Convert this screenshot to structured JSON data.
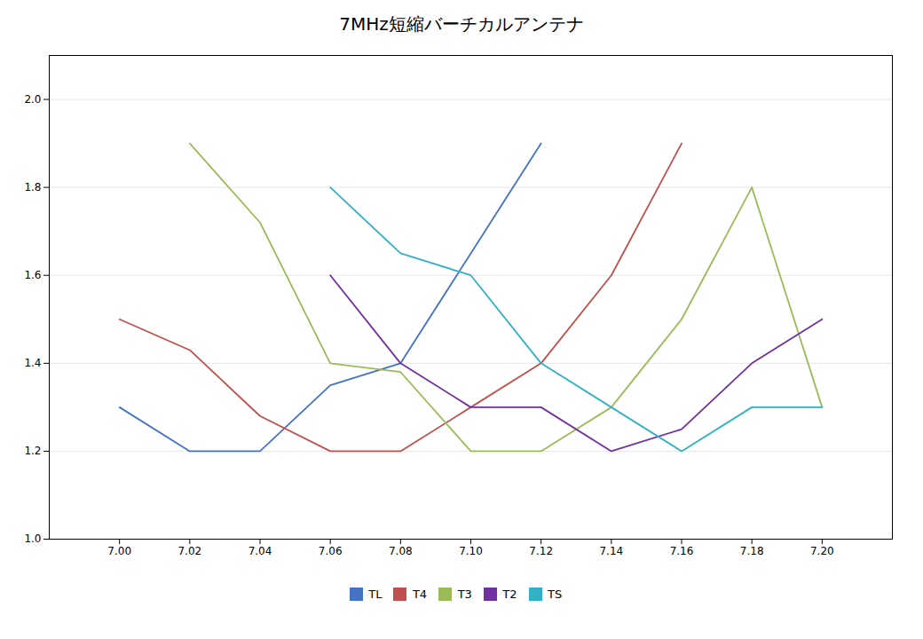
{
  "chart_data": {
    "type": "line",
    "title": "7MHz短縮バーチカルアンテナ",
    "x": [
      7.0,
      7.02,
      7.04,
      7.06,
      7.08,
      7.1,
      7.12,
      7.14,
      7.16,
      7.18,
      7.2
    ],
    "series": [
      {
        "name": "TL",
        "color": "#4472C4",
        "values": [
          1.3,
          1.2,
          1.2,
          1.35,
          1.4,
          1.65,
          1.9,
          null,
          null,
          null,
          null
        ]
      },
      {
        "name": "T4",
        "color": "#C0504D",
        "values": [
          1.5,
          1.43,
          1.28,
          1.2,
          1.2,
          1.3,
          1.4,
          1.6,
          1.9,
          null,
          null
        ]
      },
      {
        "name": "T3",
        "color": "#9BBB59",
        "values": [
          null,
          1.9,
          1.72,
          1.4,
          1.38,
          1.2,
          1.2,
          1.3,
          1.5,
          1.8,
          1.3
        ]
      },
      {
        "name": "T2",
        "color": "#7030A0",
        "values": [
          null,
          null,
          null,
          1.6,
          1.4,
          1.3,
          1.3,
          1.2,
          1.25,
          1.4,
          1.5
        ]
      },
      {
        "name": "TS",
        "color": "#31B0C6",
        "values": [
          null,
          null,
          null,
          1.8,
          1.65,
          1.6,
          1.4,
          1.3,
          1.2,
          1.3,
          1.3
        ]
      }
    ],
    "xlim": [
      6.98,
      7.22
    ],
    "xticks": [
      {
        "value": 7.0,
        "label": "7.00"
      },
      7.02,
      7.04,
      7.06,
      7.08,
      {
        "value": 7.1,
        "label": "7.10"
      },
      7.12,
      7.14,
      7.16,
      7.18,
      {
        "value": 7.2,
        "label": "7.20"
      }
    ],
    "ylim": [
      1.0,
      2.1
    ],
    "yticks": [
      {
        "value": 1.0,
        "label": "1.0"
      },
      1.2,
      1.4,
      1.6,
      1.8,
      {
        "value": 2.0,
        "label": "2.0"
      }
    ],
    "grid": "y",
    "legend": "bottom"
  }
}
